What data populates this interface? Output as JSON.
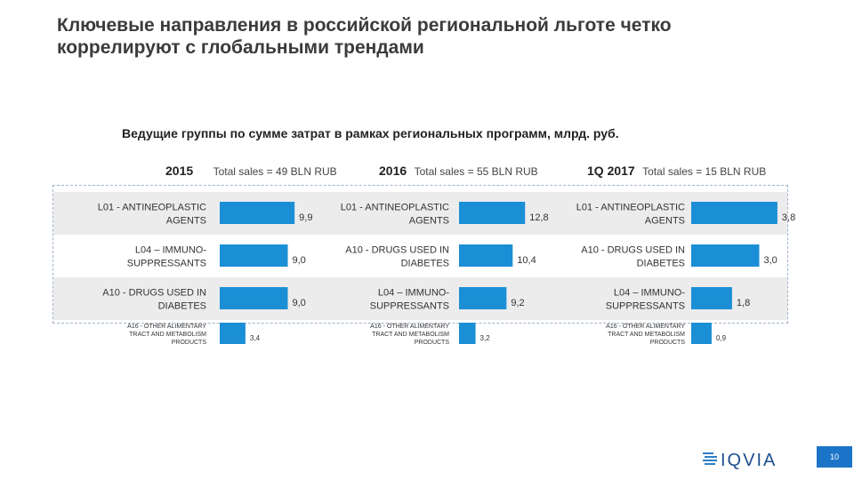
{
  "slide": {
    "title": "Ключевые направления в российской региональной льготе четко коррелируют с глобальными трендами",
    "subtitle": "Ведущие группы по сумме затрат в рамках региональных программ, млрд. руб.",
    "page_number": "10",
    "logo_text": "IQVIA",
    "colors": {
      "bar": "#1b8fd6",
      "band": "#ececec",
      "badge": "#1b74c8"
    }
  },
  "chart_data": [
    {
      "type": "bar",
      "orientation": "horizontal",
      "year": "2015",
      "total_label": "Total sales = 49 BLN RUB",
      "categories": [
        "L01 - ANTINEOPLASTIC AGENTS",
        "L04 – IMMUNO-SUPPRESSANTS",
        "A10 - DRUGS USED IN DIABETES",
        "A16 - OTHER ALIMENTARY TRACT AND METABOLISM PRODUCTS"
      ],
      "values": [
        9.9,
        9.0,
        9.0,
        3.4
      ],
      "value_labels": [
        "9,9",
        "9,0",
        "9,0",
        "3,4"
      ]
    },
    {
      "type": "bar",
      "orientation": "horizontal",
      "year": "2016",
      "total_label": "Total sales = 55 BLN RUB",
      "categories": [
        "L01 - ANTINEOPLASTIC AGENTS",
        "A10 - DRUGS USED IN DIABETES",
        "L04 – IMMUNO-SUPPRESSANTS",
        "A16 - OTHER ALIMENTARY TRACT AND METABOLISM PRODUCTS"
      ],
      "values": [
        12.8,
        10.4,
        9.2,
        3.2
      ],
      "value_labels": [
        "12,8",
        "10,4",
        "9,2",
        "3,2"
      ]
    },
    {
      "type": "bar",
      "orientation": "horizontal",
      "year": "1Q 2017",
      "total_label": "Total sales = 15 BLN RUB",
      "categories": [
        "L01 - ANTINEOPLASTIC AGENTS",
        "A10 - DRUGS USED IN DIABETES",
        "L04 – IMMUNO-SUPPRESSANTS",
        "A16 - OTHER ALIMENTARY TRACT AND METABOLISM PRODUCTS"
      ],
      "values": [
        3.8,
        3.0,
        1.8,
        0.9
      ],
      "value_labels": [
        "3,8",
        "3,0",
        "1,8",
        "0,9"
      ]
    }
  ]
}
